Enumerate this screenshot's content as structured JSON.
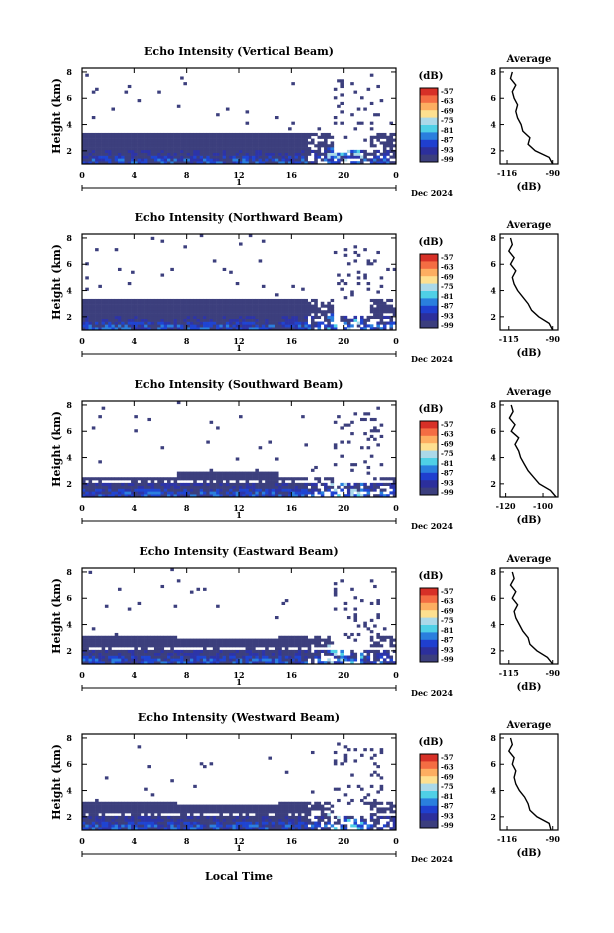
{
  "figure": {
    "xlabel": "Local Time",
    "ylabel": "Height (km)",
    "date_label": "Dec 2024",
    "day_label": "1",
    "cbar_unit": "(dB)",
    "avg_title": "Average",
    "avg_xlabel": "(dB)"
  },
  "colormap": {
    "levels": [
      "-57",
      "-63",
      "-69",
      "-75",
      "-81",
      "-87",
      "-93",
      "-99"
    ],
    "colors": [
      "#d73027",
      "#f46d43",
      "#fdae61",
      "#fee090",
      "#abd9e9",
      "#4fd0e6",
      "#2a7fde",
      "#1f3fcf",
      "#2c2f9c",
      "#3b3e7e"
    ]
  },
  "chart_data": [
    {
      "type": "heatmap",
      "title": "Echo Intensity (Vertical Beam)",
      "x_ticks": [
        "0",
        "4",
        "8",
        "12",
        "16",
        "20",
        "0"
      ],
      "y_ticks": [
        "2",
        "4",
        "6",
        "8"
      ],
      "xlim": [
        0,
        24
      ],
      "ylim": [
        1,
        8.3
      ],
      "avg_profile": {
        "title": "Average",
        "x_ticks": [
          "-116",
          "-90"
        ],
        "xlim": [
          -120,
          -87
        ],
        "y_ticks": [
          "2",
          "4",
          "6",
          "8"
        ],
        "heights": [
          1.0,
          1.5,
          2.0,
          2.5,
          3.0,
          3.5,
          4.0,
          4.5,
          5.0,
          5.5,
          6.0,
          6.5,
          7.0,
          7.5,
          8.0
        ],
        "values": [
          -90,
          -92,
          -100,
          -104,
          -103,
          -107,
          -108,
          -110,
          -111,
          -110,
          -112,
          -113,
          -111,
          -114,
          -113
        ]
      }
    },
    {
      "type": "heatmap",
      "title": "Echo Intensity (Northward Beam)",
      "x_ticks": [
        "0",
        "4",
        "8",
        "12",
        "16",
        "20",
        "0"
      ],
      "y_ticks": [
        "2",
        "4",
        "6",
        "8"
      ],
      "xlim": [
        0,
        24
      ],
      "ylim": [
        1,
        8.3
      ],
      "avg_profile": {
        "title": "Average",
        "x_ticks": [
          "-115",
          "-90"
        ],
        "xlim": [
          -120,
          -87
        ],
        "y_ticks": [
          "2",
          "4",
          "6",
          "8"
        ],
        "heights": [
          1.0,
          1.5,
          2.0,
          2.5,
          3.0,
          3.5,
          4.0,
          4.5,
          5.0,
          5.5,
          6.0,
          6.5,
          7.0,
          7.5,
          8.0
        ],
        "values": [
          -90,
          -92,
          -98,
          -102,
          -104,
          -107,
          -110,
          -112,
          -113,
          -111,
          -114,
          -112,
          -115,
          -113,
          -114
        ]
      }
    },
    {
      "type": "heatmap",
      "title": "Echo Intensity (Southward Beam)",
      "x_ticks": [
        "0",
        "4",
        "8",
        "12",
        "16",
        "20",
        "0"
      ],
      "y_ticks": [
        "2",
        "4",
        "6",
        "8"
      ],
      "xlim": [
        0,
        24
      ],
      "ylim": [
        1,
        8.3
      ],
      "avg_profile": {
        "title": "Average",
        "x_ticks": [
          "-120",
          "-100"
        ],
        "xlim": [
          -123,
          -92
        ],
        "y_ticks": [
          "2",
          "4",
          "6",
          "8"
        ],
        "heights": [
          1.0,
          1.5,
          2.0,
          2.5,
          3.0,
          3.5,
          4.0,
          4.5,
          5.0,
          5.5,
          6.0,
          6.5,
          7.0,
          7.5,
          8.0
        ],
        "values": [
          -93,
          -96,
          -102,
          -105,
          -108,
          -110,
          -112,
          -113,
          -115,
          -113,
          -117,
          -115,
          -118,
          -116,
          -117
        ]
      }
    },
    {
      "type": "heatmap",
      "title": "Echo Intensity (Eastward Beam)",
      "x_ticks": [
        "0",
        "4",
        "8",
        "12",
        "16",
        "20",
        "0"
      ],
      "y_ticks": [
        "2",
        "4",
        "6",
        "8"
      ],
      "xlim": [
        0,
        24
      ],
      "ylim": [
        1,
        8.3
      ],
      "avg_profile": {
        "title": "Average",
        "x_ticks": [
          "-115",
          "-90"
        ],
        "xlim": [
          -120,
          -87
        ],
        "y_ticks": [
          "2",
          "4",
          "6",
          "8"
        ],
        "heights": [
          1.0,
          1.5,
          2.0,
          2.5,
          3.0,
          3.5,
          4.0,
          4.5,
          5.0,
          5.5,
          6.0,
          6.5,
          7.0,
          7.5,
          8.0
        ],
        "values": [
          -90,
          -93,
          -99,
          -103,
          -104,
          -107,
          -109,
          -111,
          -112,
          -110,
          -113,
          -111,
          -114,
          -112,
          -113
        ]
      }
    },
    {
      "type": "heatmap",
      "title": "Echo Intensity (Westward Beam)",
      "x_ticks": [
        "0",
        "4",
        "8",
        "12",
        "16",
        "20",
        "0"
      ],
      "y_ticks": [
        "2",
        "4",
        "6",
        "8"
      ],
      "xlim": [
        0,
        24
      ],
      "ylim": [
        1,
        8.3
      ],
      "avg_profile": {
        "title": "Average",
        "x_ticks": [
          "-116",
          "-90"
        ],
        "xlim": [
          -120,
          -87
        ],
        "y_ticks": [
          "2",
          "4",
          "6",
          "8"
        ],
        "heights": [
          1.0,
          1.5,
          2.0,
          2.5,
          3.0,
          3.5,
          4.0,
          4.5,
          5.0,
          5.5,
          6.0,
          6.5,
          7.0,
          7.5,
          8.0
        ],
        "values": [
          -91,
          -92,
          -99,
          -103,
          -104,
          -106,
          -109,
          -111,
          -112,
          -111,
          -113,
          -112,
          -115,
          -113,
          -114
        ]
      }
    }
  ]
}
